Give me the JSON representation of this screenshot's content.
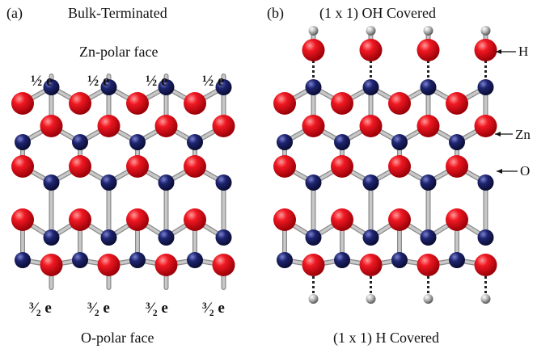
{
  "panel_a": {
    "tag": "(a)",
    "title": "Bulk-Terminated",
    "top_face": "Zn-polar face",
    "bottom_face": "O-polar face",
    "top_charge": "½ e",
    "bottom_charge": "³⁄₂ e"
  },
  "panel_b": {
    "tag": "(b)",
    "title": "(1 x 1) OH Covered",
    "bottom_caption": "(1 x 1) H Covered",
    "labels": {
      "h": "H",
      "zn": "Zn",
      "o": "O"
    }
  },
  "colors": {
    "oxygen": "#e0101a",
    "zinc": "#1a1f66",
    "hydrogen": "#9a9a9a",
    "bond": "#c8c8c8"
  }
}
